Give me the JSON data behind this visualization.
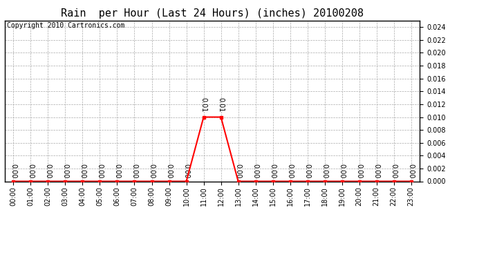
{
  "title": "Rain  per Hour (Last 24 Hours) (inches) 20100208",
  "copyright": "Copyright 2010 Cartronics.com",
  "hours": [
    0,
    1,
    2,
    3,
    4,
    5,
    6,
    7,
    8,
    9,
    10,
    11,
    12,
    13,
    14,
    15,
    16,
    17,
    18,
    19,
    20,
    21,
    22,
    23
  ],
  "values": [
    0,
    0,
    0,
    0,
    0,
    0,
    0,
    0,
    0,
    0,
    0,
    0.01,
    0.01,
    0,
    0,
    0,
    0,
    0,
    0,
    0,
    0,
    0,
    0,
    0
  ],
  "line_color": "#ff0000",
  "marker_color": "#ff0000",
  "background_color": "#ffffff",
  "grid_color": "#aaaaaa",
  "text_color": "#000000",
  "ylim": [
    0,
    0.025
  ],
  "yticks": [
    0.0,
    0.002,
    0.004,
    0.006,
    0.008,
    0.01,
    0.012,
    0.014,
    0.016,
    0.018,
    0.02,
    0.022,
    0.024
  ],
  "annotation_color": "#000000",
  "title_fontsize": 11,
  "tick_fontsize": 7,
  "copyright_fontsize": 7,
  "annotation_fontsize": 7
}
